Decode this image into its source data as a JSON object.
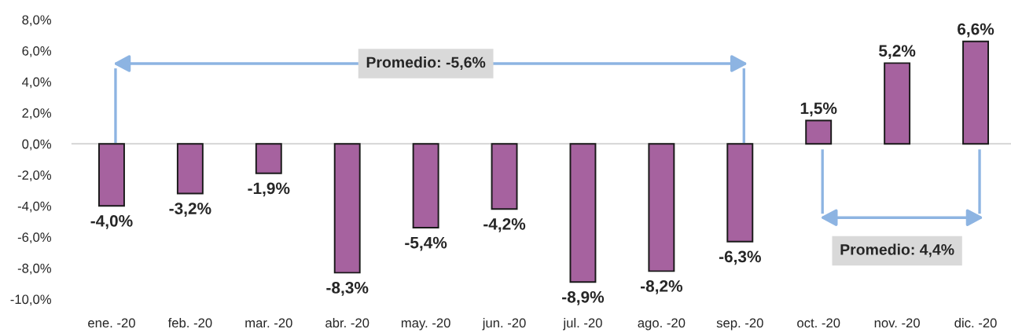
{
  "chart_data": {
    "type": "bar",
    "categories": [
      "ene. -20",
      "feb. -20",
      "mar. -20",
      "abr. -20",
      "may. -20",
      "jun. -20",
      "jul. -20",
      "ago. -20",
      "sep. -20",
      "oct. -20",
      "nov. -20",
      "dic. -20"
    ],
    "values": [
      -4.0,
      -3.2,
      -1.9,
      -8.3,
      -5.4,
      -4.2,
      -8.9,
      -8.2,
      -6.3,
      1.5,
      5.2,
      6.6
    ],
    "color": "#a6629f",
    "value_labels": [
      "-4,0%",
      "-3,2%",
      "-1,9%",
      "-8,3%",
      "-5,4%",
      "-4,2%",
      "-8,9%",
      "-8,2%",
      "-6,3%",
      "1,5%",
      "5,2%",
      "6,6%"
    ],
    "ylim": [
      -10,
      8
    ],
    "yticks": [
      {
        "value": -10,
        "label": "-10,0%"
      },
      {
        "value": -8,
        "label": "-8,0%"
      },
      {
        "value": -6,
        "label": "-6,0%"
      },
      {
        "value": -4,
        "label": "-4,0%"
      },
      {
        "value": -2,
        "label": "-2,0%"
      },
      {
        "value": 0,
        "label": "0,0%"
      },
      {
        "value": 2,
        "label": "2,0%"
      },
      {
        "value": 4,
        "label": "4,0%"
      },
      {
        "value": 6,
        "label": "6,0%"
      },
      {
        "value": 8,
        "label": "8,0%"
      }
    ],
    "annotations": [
      "Promedio: -5,6%",
      "Promedio: 4,4%"
    ]
  }
}
